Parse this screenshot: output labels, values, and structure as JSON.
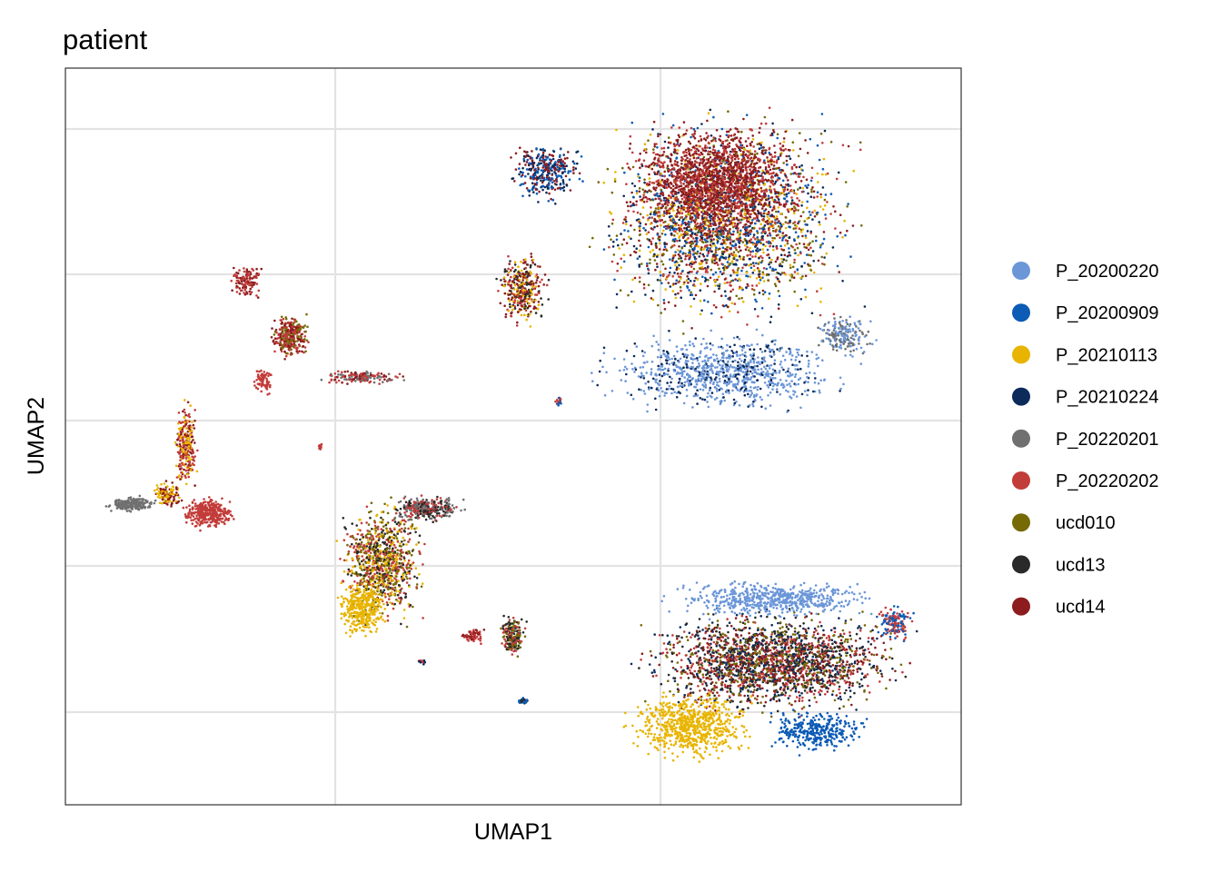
{
  "chart_data": {
    "type": "scatter",
    "title": "patient",
    "xlabel": "UMAP1",
    "ylabel": "UMAP2",
    "grid": true,
    "tick_labels_shown": false,
    "legend_placement": "right",
    "series": [
      {
        "name": "P_20200220",
        "color": "#6B96D8"
      },
      {
        "name": "P_20200909",
        "color": "#0C5BB5"
      },
      {
        "name": "P_20210113",
        "color": "#E8B400"
      },
      {
        "name": "P_20210224",
        "color": "#0C2B5A"
      },
      {
        "name": "P_20220201",
        "color": "#707070"
      },
      {
        "name": "P_20220202",
        "color": "#C23C3A"
      },
      {
        "name": "ucd010",
        "color": "#756A06"
      },
      {
        "name": "ucd13",
        "color": "#2A2A2A"
      },
      {
        "name": "ucd14",
        "color": "#8C1C1E"
      }
    ],
    "clusters": [
      {
        "region": "top-right",
        "series_mix": [
          "P_20200220",
          "P_20210113",
          "P_20210224",
          "ucd14",
          "P_20220202",
          "ucd010",
          "P_20200909",
          "ucd13",
          "P_20220201"
        ]
      },
      {
        "region": "bottom-right",
        "series_mix": [
          "P_20200220",
          "P_20210113",
          "P_20200909",
          "ucd14",
          "ucd010",
          "P_20210224",
          "P_20220202",
          "ucd13"
        ]
      },
      {
        "region": "center",
        "series_mix": [
          "P_20220202",
          "P_20210113",
          "ucd010",
          "ucd13",
          "P_20220201",
          "ucd14"
        ]
      },
      {
        "region": "upper-left",
        "series_mix": [
          "P_20220202",
          "ucd14",
          "ucd010",
          "P_20220201"
        ]
      },
      {
        "region": "left",
        "series_mix": [
          "P_20220202",
          "P_20210113",
          "P_20220201",
          "ucd14"
        ]
      }
    ]
  }
}
